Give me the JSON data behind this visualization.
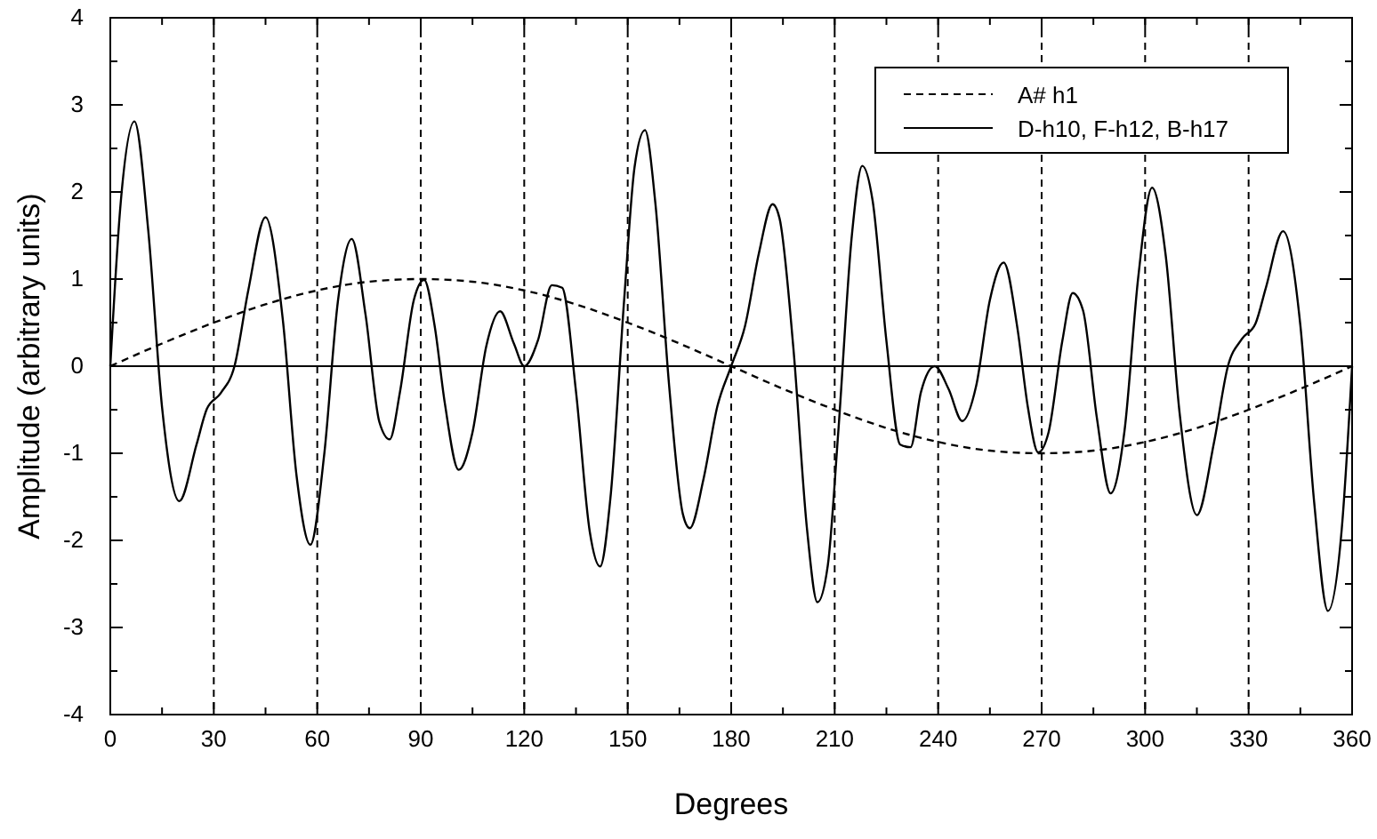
{
  "chart_data": {
    "type": "line",
    "xlabel": "Degrees",
    "ylabel": "Amplitude (arbitrary units)",
    "xlim": [
      0,
      360
    ],
    "ylim": [
      -4,
      4
    ],
    "xticks": [
      0,
      {
        "value": 15,
        "label": null
      },
      30,
      {
        "value": 45,
        "label": null
      },
      60,
      {
        "value": 75,
        "label": null
      },
      90,
      {
        "value": 105,
        "label": null
      },
      120,
      {
        "value": 135,
        "label": null
      },
      150,
      {
        "value": 165,
        "label": null
      },
      180,
      {
        "value": 195,
        "label": null
      },
      210,
      {
        "value": 225,
        "label": null
      },
      240,
      {
        "value": 255,
        "label": null
      },
      270,
      {
        "value": 285,
        "label": null
      },
      300,
      {
        "value": 315,
        "label": null
      },
      330,
      {
        "value": 345,
        "label": null
      },
      360
    ],
    "yticks": [
      -4,
      {
        "value": -3.5,
        "label": null
      },
      -3,
      {
        "value": -2.5,
        "label": null
      },
      -2,
      {
        "value": -1.5,
        "label": null
      },
      -1,
      {
        "value": -0.5,
        "label": null
      },
      0,
      {
        "value": 0.5,
        "label": null
      },
      1,
      {
        "value": 1.5,
        "label": null
      },
      2,
      {
        "value": 2.5,
        "label": null
      },
      3,
      {
        "value": 3.5,
        "label": null
      },
      4
    ],
    "grid": false,
    "legend": "top right",
    "marker": "none",
    "ref_lines": [
      {
        "axis": "y",
        "value": 0,
        "line_style": "solid"
      },
      {
        "axis": "x",
        "value": 30,
        "line_style": "dashed"
      },
      {
        "axis": "x",
        "value": 60,
        "line_style": "dashed"
      },
      {
        "axis": "x",
        "value": 90,
        "line_style": "dashed"
      },
      {
        "axis": "x",
        "value": 120,
        "line_style": "dashed"
      },
      {
        "axis": "x",
        "value": 150,
        "line_style": "dashed"
      },
      {
        "axis": "x",
        "value": 180,
        "line_style": "dashed"
      },
      {
        "axis": "x",
        "value": 210,
        "line_style": "dashed"
      },
      {
        "axis": "x",
        "value": 240,
        "line_style": "dashed"
      },
      {
        "axis": "x",
        "value": 270,
        "line_style": "dashed"
      },
      {
        "axis": "x",
        "value": 300,
        "line_style": "dashed"
      },
      {
        "axis": "x",
        "value": 330,
        "line_style": "dashed"
      }
    ],
    "series": [
      {
        "name": "A# h1",
        "color": "#000000",
        "line_style": "dashed",
        "x": [
          0,
          15,
          30,
          45,
          60,
          75,
          90,
          105,
          120,
          135,
          150,
          165,
          180,
          195,
          210,
          225,
          240,
          255,
          270,
          285,
          300,
          315,
          330,
          345,
          360
        ],
        "values": [
          0,
          0.26,
          0.5,
          0.71,
          0.87,
          0.97,
          1,
          0.97,
          0.87,
          0.71,
          0.5,
          0.26,
          0,
          -0.26,
          -0.5,
          -0.71,
          -0.87,
          -0.97,
          -1,
          -0.97,
          -0.87,
          -0.71,
          -0.5,
          -0.26,
          0
        ]
      },
      {
        "name": "D-h10, F-h12, B-h17",
        "color": "#000000",
        "line_style": "solid",
        "x": [
          0,
          3,
          7,
          11,
          15,
          20,
          25,
          28,
          32,
          36,
          40,
          45,
          50,
          54,
          58,
          62,
          66,
          70,
          74,
          78,
          81,
          84,
          88,
          91,
          94,
          97,
          101,
          105,
          109,
          113,
          117,
          120,
          124,
          128,
          131,
          135,
          139,
          142,
          145,
          149,
          152,
          155,
          158,
          162,
          166,
          168,
          172,
          176,
          180,
          184,
          188,
          192,
          194,
          198,
          202,
          205,
          208,
          211,
          215,
          218,
          221,
          225,
          229,
          232,
          235,
          239,
          243,
          247,
          251,
          255,
          259,
          263,
          266,
          269,
          272,
          276,
          279,
          282,
          286,
          290,
          294,
          298,
          302,
          306,
          310,
          315,
          320,
          324,
          328,
          332,
          335,
          340,
          345,
          349,
          353,
          357,
          360
        ],
        "values": [
          0,
          1.87,
          2.81,
          1.56,
          -0.47,
          -1.55,
          -0.9,
          -0.49,
          -0.31,
          0,
          0.87,
          1.71,
          0.54,
          -1.26,
          -2.05,
          -1.02,
          0.75,
          1.46,
          0.59,
          -0.64,
          -0.84,
          -0.29,
          0.76,
          0.99,
          0.47,
          -0.43,
          -1.19,
          -0.76,
          0.23,
          0.63,
          0.26,
          0,
          0.3,
          0.93,
          0.9,
          -0.29,
          -1.9,
          -2.3,
          -1.51,
          0.78,
          2.29,
          2.71,
          1.88,
          -0.22,
          -1.7,
          -1.86,
          -1.29,
          -0.46,
          0,
          0.46,
          1.29,
          1.86,
          1.7,
          0.22,
          -1.88,
          -2.71,
          -2.29,
          -0.78,
          1.51,
          2.3,
          1.9,
          0.29,
          -0.9,
          -0.93,
          -0.3,
          0,
          -0.26,
          -0.63,
          -0.23,
          0.76,
          1.19,
          0.43,
          -0.47,
          -0.99,
          -0.76,
          0.29,
          0.84,
          0.64,
          -0.59,
          -1.46,
          -0.75,
          1.02,
          2.05,
          1.26,
          -0.54,
          -1.71,
          -0.87,
          0,
          0.31,
          0.49,
          0.9,
          1.55,
          0.47,
          -1.56,
          -2.81,
          -1.87,
          0
        ]
      }
    ]
  }
}
